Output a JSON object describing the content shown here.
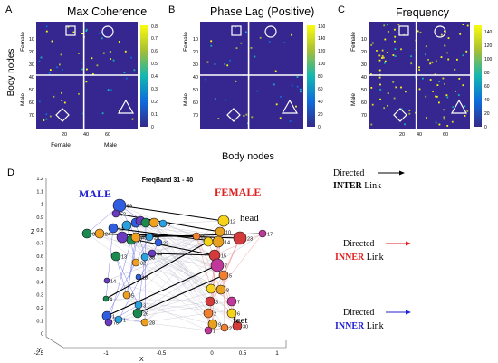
{
  "panels": [
    {
      "letter": "A",
      "title": "Max Coherence",
      "y_labels": [
        "10",
        "20",
        "30",
        "40",
        "50",
        "60",
        "70"
      ],
      "x_labels": [
        "20",
        "40",
        "60"
      ],
      "colorbar_ticks": [
        "0",
        "0.1",
        "0.2",
        "0.3",
        "0.4",
        "0.5",
        "0.6",
        "0.7",
        "0.8"
      ],
      "colorbar_max": 0.8,
      "side_top": "Female",
      "side_bottom": "Male",
      "bottom_left": "Female",
      "bottom_right": "Male"
    },
    {
      "letter": "B",
      "title": "Phase Lag (Positive)",
      "y_labels": [
        "10",
        "20",
        "30",
        "40",
        "50",
        "60",
        "70"
      ],
      "x_labels": [],
      "colorbar_ticks": [
        "0",
        "20",
        "40",
        "60",
        "80",
        "100",
        "120",
        "140",
        "160"
      ],
      "colorbar_max": 160,
      "side_top": "Female",
      "side_bottom": "Male",
      "bottom_left": "",
      "bottom_right": ""
    },
    {
      "letter": "C",
      "title": "Frequency",
      "y_labels": [
        "10",
        "20",
        "30",
        "40",
        "50",
        "60",
        "70"
      ],
      "x_labels": [
        "20",
        "40",
        "60"
      ],
      "colorbar_ticks": [
        "0",
        "20",
        "40",
        "60",
        "80",
        "100",
        "120",
        "140"
      ],
      "colorbar_max": 150,
      "side_top": "Female",
      "side_bottom": "Male",
      "bottom_left": "",
      "bottom_right": ""
    }
  ],
  "y_axis_label": "Body nodes",
  "x_axis_label": "Body nodes",
  "panel_d": {
    "letter": "D",
    "title": "FreqBand 31 - 40",
    "male_label": "MALE",
    "female_label": "FEMALE",
    "head_label": "head",
    "feet_label": "feet",
    "z_axis_label": "Z",
    "x_axis_label": "X",
    "y_axis_label": "Y",
    "z_ticks": [
      "1.2",
      "1.1",
      "1",
      "0.9",
      "0.8",
      "0.7",
      "0.6",
      "0.5",
      "0.4",
      "0.3",
      "0.2",
      "0.1",
      "0"
    ],
    "x_ticks": [
      "-1",
      "-0.5",
      "0",
      "0.5",
      "1"
    ],
    "y_tick": "-2.5",
    "male_node_labels": [
      "59",
      "52",
      "36",
      "24",
      "40",
      "27",
      "30",
      "25",
      "29",
      "3",
      "11",
      "16",
      "17",
      "43",
      "20",
      "22",
      "44",
      "13",
      "32",
      "38",
      "18",
      "14",
      "4",
      "5",
      "3",
      "1",
      "70",
      "26",
      "28",
      "1"
    ],
    "female_node_labels": [
      "12",
      "10",
      "23",
      "17",
      "22",
      "13",
      "14",
      "15",
      "7",
      "5",
      "4",
      "8",
      "3",
      "7",
      "2",
      "6",
      "9",
      "30",
      "1",
      "2"
    ]
  },
  "legend": [
    {
      "line1": "Directed",
      "line2_bold": "INTER",
      "line2_rest": " Link",
      "color": "#000000"
    },
    {
      "line1": "Directed",
      "line2_bold": "INNER",
      "line2_rest": " Link",
      "color": "#e02020"
    },
    {
      "line1": "Directed",
      "line2_bold": "INNER",
      "line2_rest": " Link",
      "color": "#2020d0"
    }
  ],
  "colors": {
    "heatmap_bg": "#35278f",
    "male": "#2020d0",
    "female": "#e02020",
    "grid_line": "#ffffff"
  }
}
